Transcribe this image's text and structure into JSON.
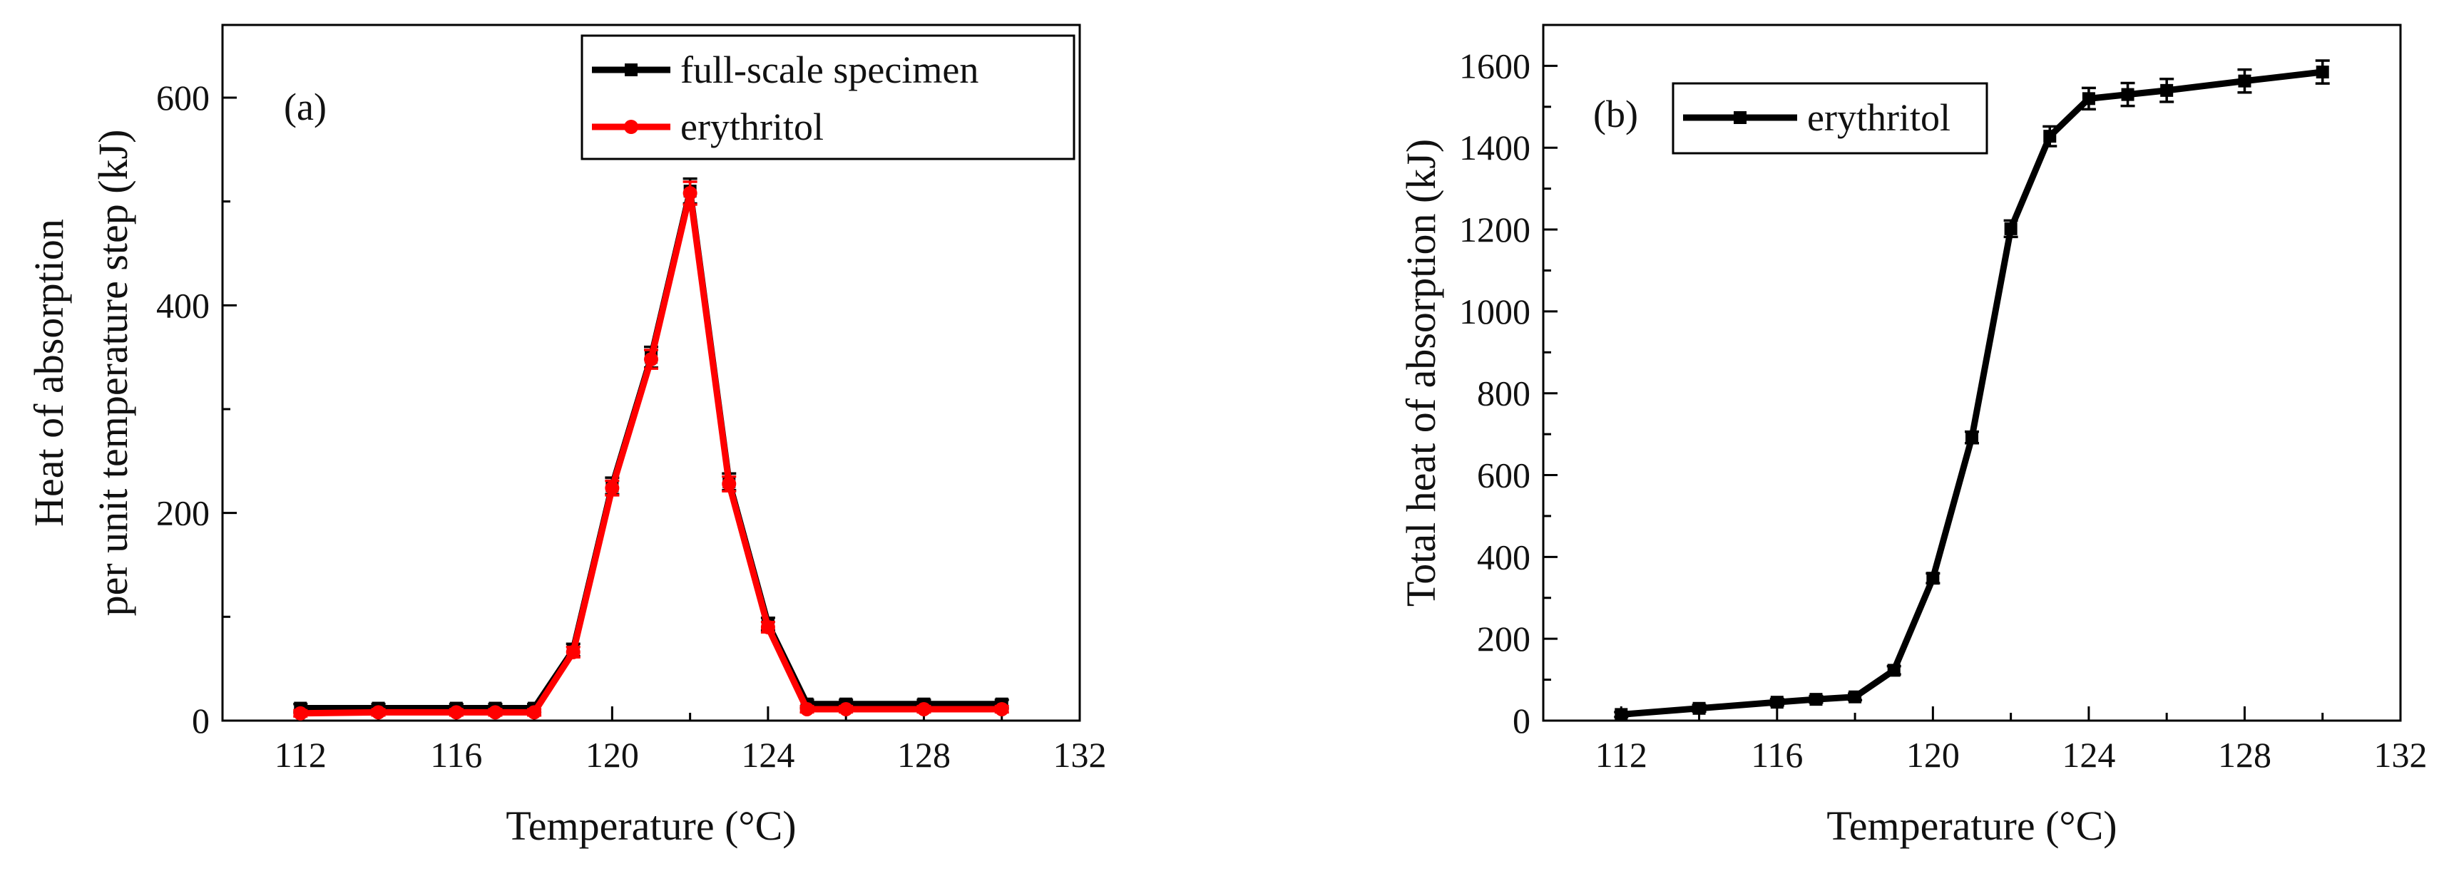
{
  "colors": {
    "black": "#000000",
    "red": "#ff0000"
  },
  "chart_data": [
    {
      "type": "line",
      "panel_label": "(a)",
      "xlabel": "Temperature (°C)",
      "ylabel_line1": "Heat of absorption",
      "ylabel_line2": "per unit temperature step (kJ)",
      "xlim": [
        110,
        132
      ],
      "ylim": [
        0,
        670
      ],
      "xticks": [
        112,
        116,
        120,
        124,
        128,
        132
      ],
      "yticks": [
        0,
        200,
        400,
        600
      ],
      "minor_xticks": [
        114,
        118,
        122,
        126,
        130
      ],
      "minor_yticks": [
        100,
        300,
        500
      ],
      "legend_position": "top-right",
      "series": [
        {
          "name": "full-scale specimen",
          "color": "#000000",
          "marker": "square",
          "x": [
            112,
            114,
            116,
            117,
            118,
            119,
            120,
            121,
            122,
            123,
            124,
            125,
            126,
            128,
            130
          ],
          "y": [
            12,
            12,
            12,
            12,
            12,
            68,
            226,
            350,
            510,
            230,
            93,
            16,
            16,
            16,
            16
          ],
          "err": [
            4,
            4,
            4,
            4,
            4,
            6,
            8,
            10,
            12,
            8,
            6,
            4,
            4,
            4,
            4
          ]
        },
        {
          "name": "erythritol",
          "color": "#ff0000",
          "marker": "circle",
          "x": [
            112,
            114,
            116,
            117,
            118,
            119,
            120,
            121,
            122,
            123,
            124,
            125,
            126,
            128,
            130
          ],
          "y": [
            7,
            8,
            8,
            8,
            8,
            66,
            224,
            348,
            508,
            228,
            90,
            11,
            11,
            11,
            11
          ],
          "err": [
            3,
            3,
            3,
            3,
            3,
            5,
            7,
            9,
            11,
            7,
            5,
            3,
            3,
            3,
            3
          ]
        }
      ]
    },
    {
      "type": "line",
      "panel_label": "(b)",
      "xlabel": "Temperature (°C)",
      "ylabel": "Total heat of absorption (kJ)",
      "xlim": [
        110,
        132
      ],
      "ylim": [
        0,
        1700
      ],
      "xticks": [
        112,
        116,
        120,
        124,
        128,
        132
      ],
      "yticks": [
        0,
        200,
        400,
        600,
        800,
        1000,
        1200,
        1400,
        1600
      ],
      "minor_xticks": [
        114,
        118,
        122,
        126,
        130
      ],
      "minor_yticks": [
        100,
        300,
        500,
        700,
        900,
        1100,
        1300,
        1500
      ],
      "legend_position": "top-left",
      "series": [
        {
          "name": "erythritol",
          "color": "#000000",
          "marker": "square",
          "x": [
            112,
            114,
            116,
            117,
            118,
            119,
            120,
            121,
            122,
            123,
            124,
            125,
            126,
            128,
            130
          ],
          "y": [
            15,
            30,
            45,
            52,
            58,
            123,
            348,
            692,
            1202,
            1428,
            1520,
            1530,
            1540,
            1563,
            1585
          ],
          "err": [
            6,
            8,
            8,
            8,
            8,
            10,
            12,
            14,
            20,
            24,
            26,
            28,
            28,
            28,
            28
          ]
        }
      ]
    }
  ]
}
